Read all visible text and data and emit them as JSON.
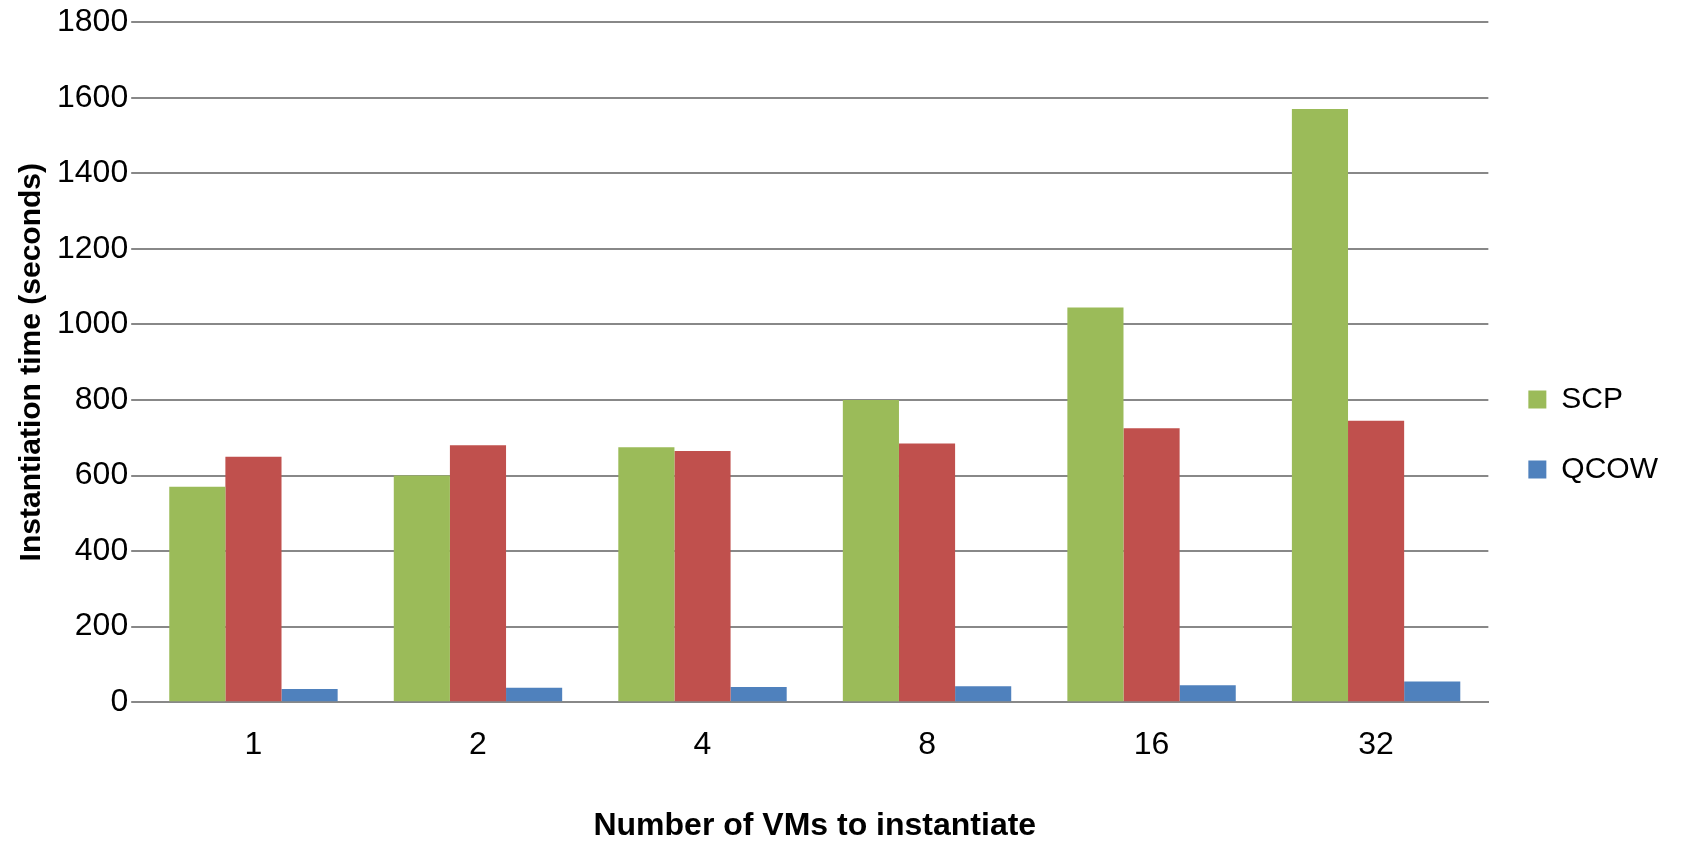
{
  "chart_data": {
    "type": "bar",
    "xlabel": "Number of VMs to instantiate",
    "ylabel": "Instantiation time (seconds)",
    "categories": [
      "1",
      "2",
      "4",
      "8",
      "16",
      "32"
    ],
    "series": [
      {
        "name": "SCP",
        "color": "#9bbb59",
        "values": [
          570,
          600,
          675,
          800,
          1045,
          1570
        ]
      },
      {
        "color": "#c0504d",
        "values": [
          650,
          680,
          665,
          685,
          725,
          745
        ]
      },
      {
        "name": "QCOW",
        "color": "#4f81bd",
        "values": [
          35,
          38,
          40,
          42,
          45,
          55
        ]
      }
    ],
    "ylim": [
      0,
      1800
    ],
    "yticks": [
      0,
      200,
      400,
      600,
      800,
      1000,
      1200,
      1400,
      1600,
      1800
    ],
    "grid": "y",
    "legend": "right"
  }
}
